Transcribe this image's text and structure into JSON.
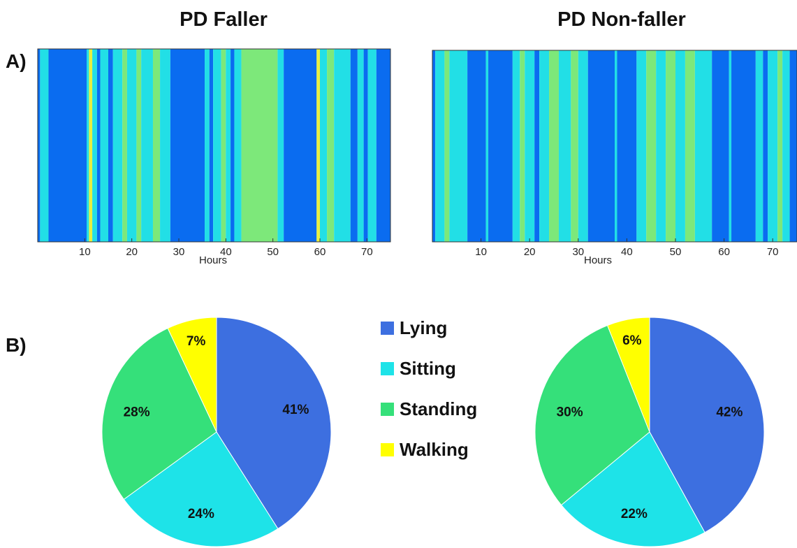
{
  "panels": {
    "a_label": "A)",
    "b_label": "B)"
  },
  "titles": {
    "left": "PD Faller",
    "right": "PD Non-faller"
  },
  "colors": {
    "Lying": "#3d6fe0",
    "Sitting": "#1ee3e8",
    "Standing": "#35e07a",
    "Walking": "#ffff00",
    "stripLying": "#0a6cf0",
    "stripSitting": "#22dfe6",
    "stripStanding": "#7de87a",
    "stripWalking": "#e9f040"
  },
  "chart_data": [
    {
      "type": "heatmap",
      "title": "PD Faller",
      "xlabel": "Hours",
      "xlim": [
        0,
        75
      ],
      "xticks": [
        10,
        20,
        30,
        40,
        50,
        60,
        70
      ],
      "segments": [
        {
          "start": 0,
          "end": 0.5,
          "state": "Lying"
        },
        {
          "start": 0.5,
          "end": 2.3,
          "state": "Sitting"
        },
        {
          "start": 2.3,
          "end": 10.4,
          "state": "Lying"
        },
        {
          "start": 10.4,
          "end": 10.9,
          "state": "Sitting"
        },
        {
          "start": 10.9,
          "end": 11.6,
          "state": "Walking"
        },
        {
          "start": 11.6,
          "end": 12.6,
          "state": "Sitting"
        },
        {
          "start": 12.6,
          "end": 13.3,
          "state": "Lying"
        },
        {
          "start": 13.3,
          "end": 15.0,
          "state": "Sitting"
        },
        {
          "start": 15.0,
          "end": 16.0,
          "state": "Lying"
        },
        {
          "start": 16.0,
          "end": 18.0,
          "state": "Sitting"
        },
        {
          "start": 18.0,
          "end": 19.0,
          "state": "Standing"
        },
        {
          "start": 19.0,
          "end": 21.0,
          "state": "Sitting"
        },
        {
          "start": 21.0,
          "end": 22.0,
          "state": "Standing"
        },
        {
          "start": 22.0,
          "end": 24.5,
          "state": "Sitting"
        },
        {
          "start": 24.5,
          "end": 26.0,
          "state": "Standing"
        },
        {
          "start": 26.0,
          "end": 28.2,
          "state": "Sitting"
        },
        {
          "start": 28.2,
          "end": 35.5,
          "state": "Lying"
        },
        {
          "start": 35.5,
          "end": 36.5,
          "state": "Sitting"
        },
        {
          "start": 36.5,
          "end": 37.3,
          "state": "Lying"
        },
        {
          "start": 37.3,
          "end": 39.0,
          "state": "Sitting"
        },
        {
          "start": 39.0,
          "end": 40.0,
          "state": "Standing"
        },
        {
          "start": 40.0,
          "end": 41.0,
          "state": "Sitting"
        },
        {
          "start": 41.0,
          "end": 41.8,
          "state": "Lying"
        },
        {
          "start": 41.8,
          "end": 43.3,
          "state": "Sitting"
        },
        {
          "start": 43.3,
          "end": 51.0,
          "state": "Standing"
        },
        {
          "start": 51.0,
          "end": 52.3,
          "state": "Sitting"
        },
        {
          "start": 52.3,
          "end": 59.3,
          "state": "Lying"
        },
        {
          "start": 59.3,
          "end": 60.0,
          "state": "Walking"
        },
        {
          "start": 60.0,
          "end": 61.5,
          "state": "Sitting"
        },
        {
          "start": 61.5,
          "end": 63.0,
          "state": "Standing"
        },
        {
          "start": 63.0,
          "end": 66.5,
          "state": "Sitting"
        },
        {
          "start": 66.5,
          "end": 68.0,
          "state": "Lying"
        },
        {
          "start": 68.0,
          "end": 69.3,
          "state": "Sitting"
        },
        {
          "start": 69.3,
          "end": 70.2,
          "state": "Lying"
        },
        {
          "start": 70.2,
          "end": 72.0,
          "state": "Sitting"
        },
        {
          "start": 72.0,
          "end": 75.0,
          "state": "Lying"
        }
      ]
    },
    {
      "type": "heatmap",
      "title": "PD Non-faller",
      "xlabel": "Hours",
      "xlim": [
        0,
        75
      ],
      "xticks": [
        10,
        20,
        30,
        40,
        50,
        60,
        70
      ],
      "segments": [
        {
          "start": 0,
          "end": 0.6,
          "state": "Lying"
        },
        {
          "start": 0.6,
          "end": 2.5,
          "state": "Sitting"
        },
        {
          "start": 2.5,
          "end": 3.5,
          "state": "Standing"
        },
        {
          "start": 3.5,
          "end": 7.2,
          "state": "Sitting"
        },
        {
          "start": 7.2,
          "end": 11.0,
          "state": "Lying"
        },
        {
          "start": 11.0,
          "end": 11.5,
          "state": "Sitting"
        },
        {
          "start": 11.5,
          "end": 16.5,
          "state": "Lying"
        },
        {
          "start": 16.5,
          "end": 18.0,
          "state": "Sitting"
        },
        {
          "start": 18.0,
          "end": 19.0,
          "state": "Standing"
        },
        {
          "start": 19.0,
          "end": 21.0,
          "state": "Sitting"
        },
        {
          "start": 21.0,
          "end": 22.0,
          "state": "Lying"
        },
        {
          "start": 22.0,
          "end": 24.0,
          "state": "Sitting"
        },
        {
          "start": 24.0,
          "end": 26.0,
          "state": "Standing"
        },
        {
          "start": 26.0,
          "end": 28.5,
          "state": "Sitting"
        },
        {
          "start": 28.5,
          "end": 30.0,
          "state": "Standing"
        },
        {
          "start": 30.0,
          "end": 32.0,
          "state": "Sitting"
        },
        {
          "start": 32.0,
          "end": 37.5,
          "state": "Lying"
        },
        {
          "start": 37.5,
          "end": 38.0,
          "state": "Sitting"
        },
        {
          "start": 38.0,
          "end": 42.0,
          "state": "Lying"
        },
        {
          "start": 42.0,
          "end": 44.0,
          "state": "Sitting"
        },
        {
          "start": 44.0,
          "end": 46.0,
          "state": "Standing"
        },
        {
          "start": 46.0,
          "end": 48.0,
          "state": "Sitting"
        },
        {
          "start": 48.0,
          "end": 50.0,
          "state": "Standing"
        },
        {
          "start": 50.0,
          "end": 52.0,
          "state": "Sitting"
        },
        {
          "start": 52.0,
          "end": 54.0,
          "state": "Standing"
        },
        {
          "start": 54.0,
          "end": 57.5,
          "state": "Sitting"
        },
        {
          "start": 57.5,
          "end": 61.0,
          "state": "Lying"
        },
        {
          "start": 61.0,
          "end": 61.5,
          "state": "Sitting"
        },
        {
          "start": 61.5,
          "end": 66.5,
          "state": "Lying"
        },
        {
          "start": 66.5,
          "end": 68.0,
          "state": "Sitting"
        },
        {
          "start": 68.0,
          "end": 69.0,
          "state": "Lying"
        },
        {
          "start": 69.0,
          "end": 71.0,
          "state": "Sitting"
        },
        {
          "start": 71.0,
          "end": 72.0,
          "state": "Standing"
        },
        {
          "start": 72.0,
          "end": 73.5,
          "state": "Sitting"
        },
        {
          "start": 73.5,
          "end": 75.0,
          "state": "Lying"
        }
      ]
    },
    {
      "type": "pie",
      "title": "PD Faller",
      "labels": [
        "Lying",
        "Sitting",
        "Standing",
        "Walking"
      ],
      "values": [
        41,
        24,
        28,
        7
      ],
      "data_labels": [
        "41%",
        "24%",
        "28%",
        "7%"
      ]
    },
    {
      "type": "pie",
      "title": "PD Non-faller",
      "labels": [
        "Lying",
        "Sitting",
        "Standing",
        "Walking"
      ],
      "values": [
        42,
        22,
        30,
        6
      ],
      "data_labels": [
        "42%",
        "22%",
        "30%",
        "6%"
      ]
    }
  ],
  "legend": {
    "placement": "center",
    "items": [
      "Lying",
      "Sitting",
      "Standing",
      "Walking"
    ]
  }
}
